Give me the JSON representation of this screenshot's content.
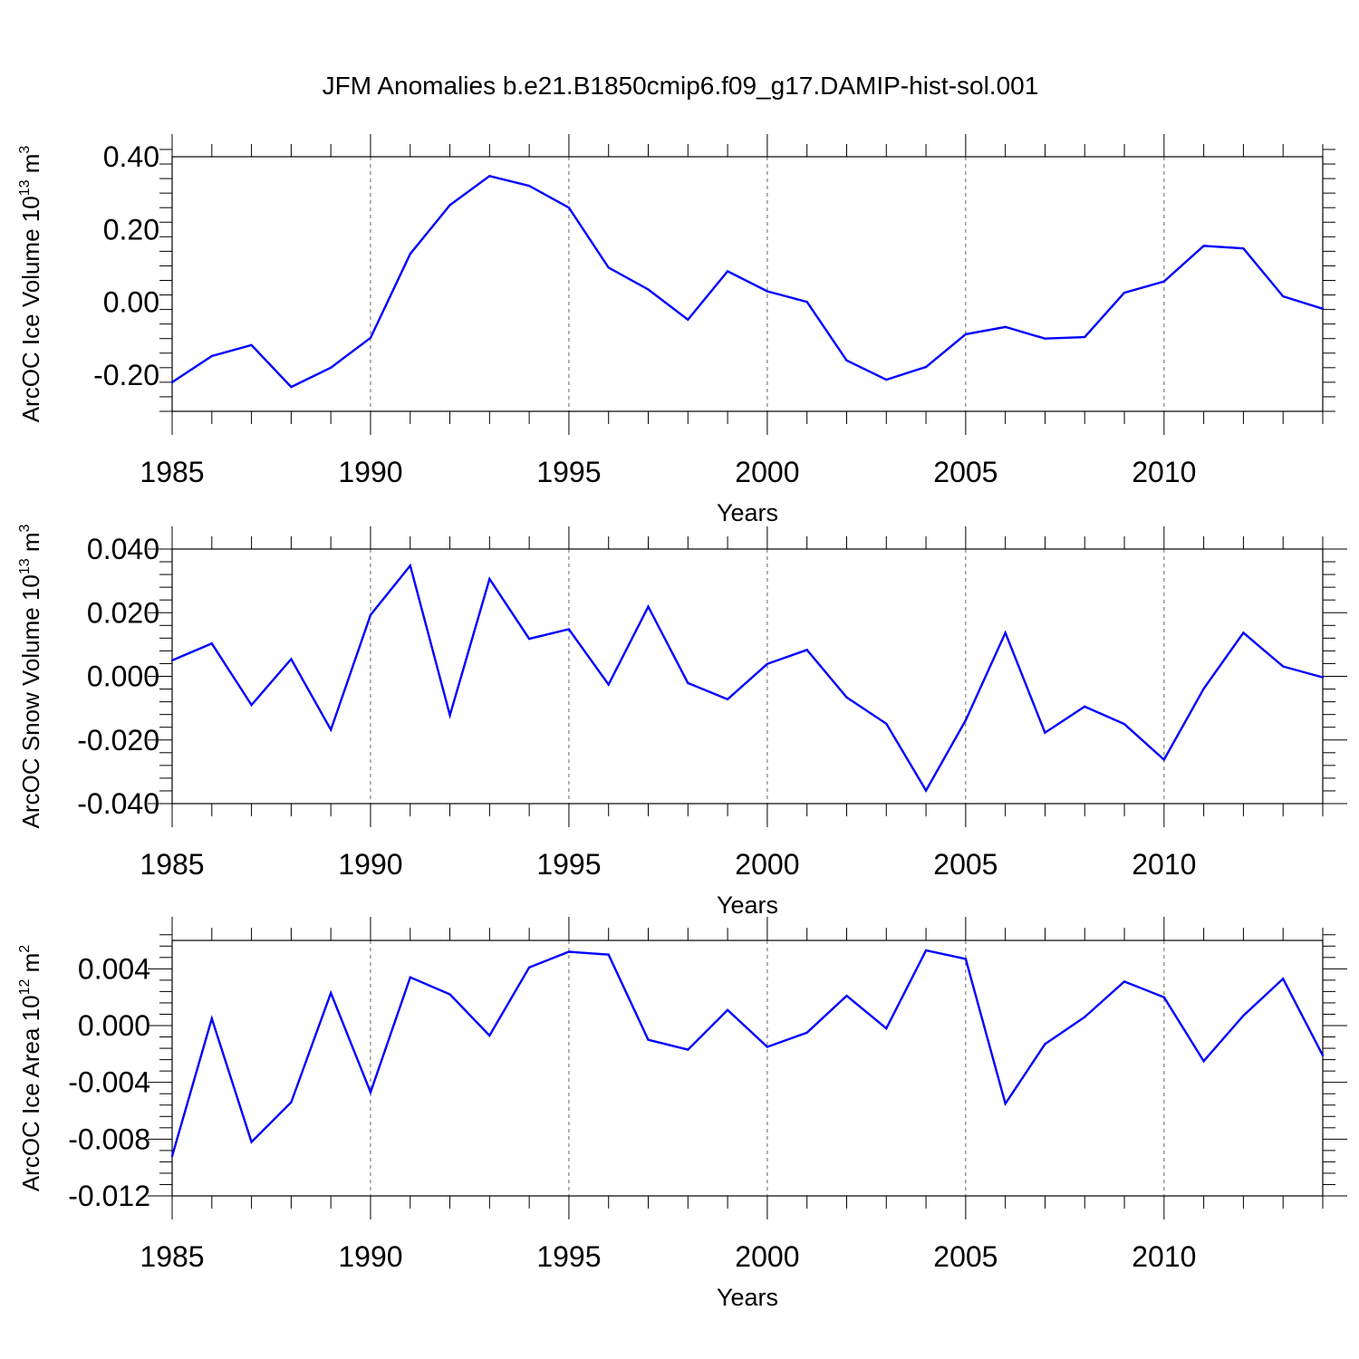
{
  "chart_data": {
    "type": "line",
    "title": "JFM Anomalies b.e21.B1850cmip6.f09_g17.DAMIP-hist-sol.001",
    "line_color": "#0000ff",
    "x": [
      1985,
      1986,
      1987,
      1988,
      1989,
      1990,
      1991,
      1992,
      1993,
      1994,
      1995,
      1996,
      1997,
      1998,
      1999,
      2000,
      2001,
      2002,
      2003,
      2004,
      2005,
      2006,
      2007,
      2008,
      2009,
      2010,
      2011,
      2012,
      2013,
      2014
    ],
    "xlim": [
      1985,
      2014
    ],
    "xticks": [
      1985,
      1990,
      1995,
      2000,
      2005,
      2010
    ],
    "xlabel": "Years",
    "grid": "dashed vertical lines at major x ticks",
    "panels": [
      {
        "ylabel": "ArcOC Ice Volume",
        "unit": {
          "base": "10",
          "exp": "13",
          "unit": "m",
          "unit_exp": "3"
        },
        "ylim": [
          -0.3,
          0.4
        ],
        "yticks": [
          0.4,
          0.2,
          0.0,
          -0.2
        ],
        "ytick_labels": [
          "0.40",
          "0.20",
          "0.00",
          "-0.20"
        ],
        "values": [
          -0.22,
          -0.148,
          -0.118,
          -0.233,
          -0.18,
          -0.098,
          0.133,
          0.267,
          0.347,
          0.32,
          0.26,
          0.095,
          0.035,
          -0.048,
          0.085,
          0.03,
          0.001,
          -0.16,
          -0.213,
          -0.178,
          -0.088,
          -0.068,
          -0.1,
          -0.096,
          0.026,
          0.057,
          0.155,
          0.148,
          0.016,
          -0.018
        ]
      },
      {
        "ylabel": "ArcOC Snow Volume",
        "unit": {
          "base": "10",
          "exp": "13",
          "unit": "m",
          "unit_exp": "3"
        },
        "ylim": [
          -0.04,
          0.04
        ],
        "yticks": [
          0.04,
          0.02,
          0.0,
          -0.02,
          -0.04
        ],
        "ytick_labels": [
          "0.040",
          "0.020",
          "0.000",
          "-0.020",
          "-0.040"
        ],
        "values": [
          0.005,
          0.0103,
          -0.009,
          0.0054,
          -0.0168,
          0.0193,
          0.0348,
          -0.0122,
          0.0306,
          0.0118,
          0.0148,
          -0.0026,
          0.0219,
          -0.0021,
          -0.0072,
          0.0039,
          0.0083,
          -0.0066,
          -0.0149,
          -0.0359,
          -0.0138,
          0.0137,
          -0.0177,
          -0.0095,
          -0.015,
          -0.0262,
          -0.0039,
          0.0137,
          0.0031,
          -0.0003
        ]
      },
      {
        "ylabel": "ArcOC Ice Area",
        "unit": {
          "base": "10",
          "exp": "12",
          "unit": "m",
          "unit_exp": "2"
        },
        "ylim": [
          -0.012,
          0.006
        ],
        "yticks": [
          0.004,
          0.0,
          -0.004,
          -0.008,
          -0.012
        ],
        "ytick_labels": [
          "0.004",
          "0.000",
          "-0.004",
          "-0.008",
          "-0.012"
        ],
        "values": [
          -0.0092,
          0.0005,
          -0.0082,
          -0.0054,
          0.0023,
          -0.0047,
          0.0034,
          0.0022,
          -0.0007,
          0.0041,
          0.0052,
          0.005,
          -0.001,
          -0.0017,
          0.0011,
          -0.0015,
          -0.0005,
          0.0021,
          -0.0002,
          0.0053,
          0.0047,
          -0.0055,
          -0.0013,
          0.0006,
          0.0031,
          0.002,
          -0.0025,
          0.0007,
          0.0033,
          -0.0021
        ]
      }
    ]
  }
}
